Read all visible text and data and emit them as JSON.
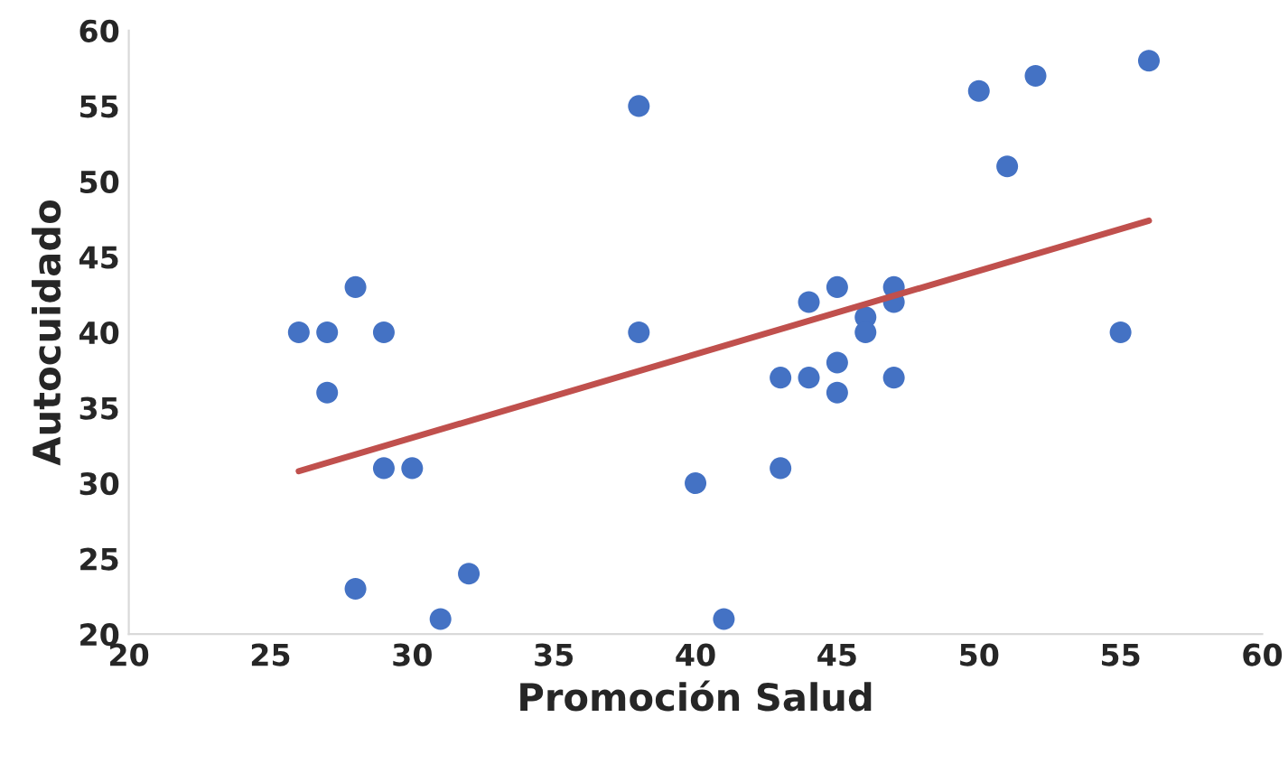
{
  "chart_data": {
    "type": "scatter",
    "xlabel": "Promoción Salud",
    "ylabel": "Autocuidado",
    "xlim": [
      20,
      60
    ],
    "xticks": [
      20,
      25,
      30,
      35,
      40,
      45,
      50,
      55,
      60
    ],
    "ylim": [
      20,
      60
    ],
    "yticks": [
      20,
      25,
      30,
      35,
      40,
      45,
      50,
      55,
      60
    ],
    "grid": false,
    "legend": false,
    "series": [
      {
        "marker": "circle",
        "color": "#4472c4",
        "x": [
          26,
          27,
          27,
          28,
          28,
          29,
          29,
          30,
          31,
          32,
          38,
          38,
          40,
          41,
          43,
          43,
          44,
          44,
          45,
          45,
          45,
          46,
          46,
          47,
          47,
          47,
          50,
          51,
          52,
          55,
          56
        ],
        "values": [
          40,
          40,
          36,
          43,
          23,
          40,
          31,
          31,
          21,
          24,
          55,
          40,
          30,
          21,
          37,
          31,
          42,
          37,
          43,
          38,
          36,
          41,
          40,
          43,
          42,
          37,
          56,
          51,
          57,
          40,
          58
        ]
      },
      {
        "type": "line",
        "color": "#c0504d",
        "line_style": "solid",
        "x": [
          26,
          56
        ],
        "values": [
          30.8,
          47.4
        ]
      }
    ]
  }
}
